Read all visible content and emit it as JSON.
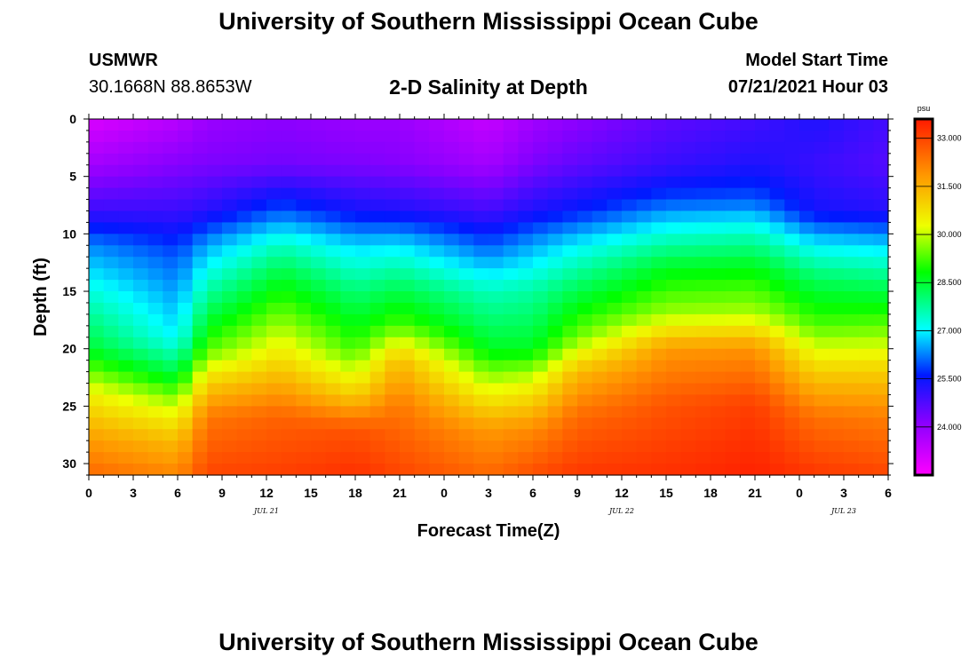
{
  "page": {
    "title": "University of Southern Mississippi Ocean Cube",
    "footer_title": "University of Southern Mississippi Ocean Cube",
    "station_name": "USMWR",
    "station_coords": "30.1668N  88.8653W",
    "subtitle": "2-D Salinity at Depth",
    "model_start_label": "Model Start Time",
    "model_start_value": "07/21/2021 Hour 03"
  },
  "chart_data": {
    "type": "heatmap",
    "title": "2-D Salinity at Depth",
    "xlabel": "Forecast Time(Z)",
    "ylabel": "Depth (ft)",
    "x_hours_range": [
      0,
      54
    ],
    "x_tick_hours": [
      0,
      3,
      6,
      9,
      12,
      15,
      18,
      21,
      24,
      27,
      30,
      33,
      36,
      39,
      42,
      45,
      48,
      51,
      54
    ],
    "x_tick_labels": [
      "0",
      "3",
      "6",
      "9",
      "12",
      "15",
      "18",
      "21",
      "0",
      "3",
      "6",
      "9",
      "12",
      "15",
      "18",
      "21",
      "0",
      "3",
      "6"
    ],
    "date_labels": [
      {
        "hour": 12,
        "text": "JUL 21"
      },
      {
        "hour": 36,
        "text": "JUL 22"
      },
      {
        "hour": 51,
        "text": "JUL 23"
      }
    ],
    "ylim": [
      0,
      31
    ],
    "y_ticks": [
      0,
      5,
      10,
      15,
      20,
      25,
      30
    ],
    "colorbar": {
      "units": "psu",
      "range": [
        22.5,
        33.6
      ],
      "ticks": [
        24.0,
        25.5,
        27.0,
        28.5,
        30.0,
        31.5,
        33.0
      ],
      "tick_labels": [
        "24.000",
        "25.500",
        "27.000",
        "28.500",
        "30.000",
        "31.500",
        "33.000"
      ]
    },
    "profiles": [
      {
        "hour": 0,
        "depths": [
          0,
          4,
          8,
          11,
          15,
          20,
          24,
          28,
          31
        ],
        "values": [
          23.0,
          23.8,
          25.0,
          26.3,
          27.3,
          28.5,
          30.5,
          31.8,
          32.5
        ]
      },
      {
        "hour": 6,
        "depths": [
          0,
          4,
          8,
          12,
          19,
          22,
          25,
          28,
          31
        ],
        "values": [
          23.5,
          24.2,
          25.0,
          26.0,
          27.0,
          28.3,
          30.0,
          31.3,
          32.1
        ]
      },
      {
        "hour": 8,
        "depths": [
          0,
          4,
          8,
          11,
          16,
          20,
          23,
          26,
          31
        ],
        "values": [
          23.9,
          24.3,
          25.2,
          26.5,
          28.0,
          29.3,
          31.0,
          32.3,
          33.0
        ]
      },
      {
        "hour": 13,
        "depths": [
          0,
          4,
          8,
          11,
          14,
          18,
          22,
          26,
          31
        ],
        "values": [
          24.1,
          24.4,
          26.0,
          27.5,
          28.6,
          29.8,
          31.2,
          32.6,
          33.1
        ]
      },
      {
        "hour": 18,
        "depths": [
          0,
          4,
          8,
          11,
          15,
          20,
          24,
          27,
          31
        ],
        "values": [
          23.9,
          24.3,
          25.4,
          26.8,
          28.0,
          29.2,
          31.0,
          32.8,
          33.3
        ]
      },
      {
        "hour": 21,
        "depths": [
          0,
          4,
          8,
          11,
          14,
          18,
          21,
          25,
          31
        ],
        "values": [
          23.9,
          24.2,
          25.3,
          26.9,
          28.0,
          29.3,
          31.3,
          32.3,
          33.0
        ]
      },
      {
        "hour": 27,
        "depths": [
          0,
          4,
          8,
          11,
          15,
          20,
          23,
          27,
          31
        ],
        "values": [
          23.3,
          23.8,
          24.9,
          26.0,
          27.5,
          28.6,
          30.0,
          31.8,
          32.5
        ]
      },
      {
        "hour": 30,
        "depths": [
          0,
          4,
          8,
          11,
          15,
          20,
          23,
          27,
          31
        ],
        "values": [
          23.8,
          24.3,
          25.3,
          26.5,
          27.7,
          28.6,
          30.3,
          32.0,
          32.9
        ]
      },
      {
        "hour": 33,
        "depths": [
          0,
          4,
          8,
          11,
          15,
          19,
          22,
          26,
          31
        ],
        "values": [
          24.1,
          24.6,
          25.6,
          27.0,
          28.3,
          29.5,
          31.3,
          32.5,
          33.2
        ]
      },
      {
        "hour": 39,
        "depths": [
          0,
          4,
          7,
          10,
          13,
          17,
          20,
          25,
          31
        ],
        "values": [
          24.6,
          25.0,
          25.9,
          27.3,
          28.6,
          29.8,
          31.8,
          32.8,
          33.3
        ]
      },
      {
        "hour": 45,
        "depths": [
          0,
          4,
          7,
          10,
          13,
          17,
          20,
          25,
          31
        ],
        "values": [
          24.9,
          25.3,
          26.0,
          27.5,
          28.7,
          29.9,
          31.9,
          33.1,
          33.5
        ]
      },
      {
        "hour": 49,
        "depths": [
          0,
          4,
          8,
          11,
          14,
          18,
          22,
          26,
          31
        ],
        "values": [
          25.3,
          25.0,
          25.4,
          27.0,
          28.2,
          29.3,
          31.0,
          32.4,
          33.2
        ]
      },
      {
        "hour": 54,
        "depths": [
          0,
          4,
          8,
          11,
          14,
          18,
          22,
          26,
          31
        ],
        "values": [
          24.9,
          24.7,
          25.2,
          26.8,
          28.0,
          29.4,
          31.0,
          32.2,
          33.0
        ]
      }
    ]
  }
}
